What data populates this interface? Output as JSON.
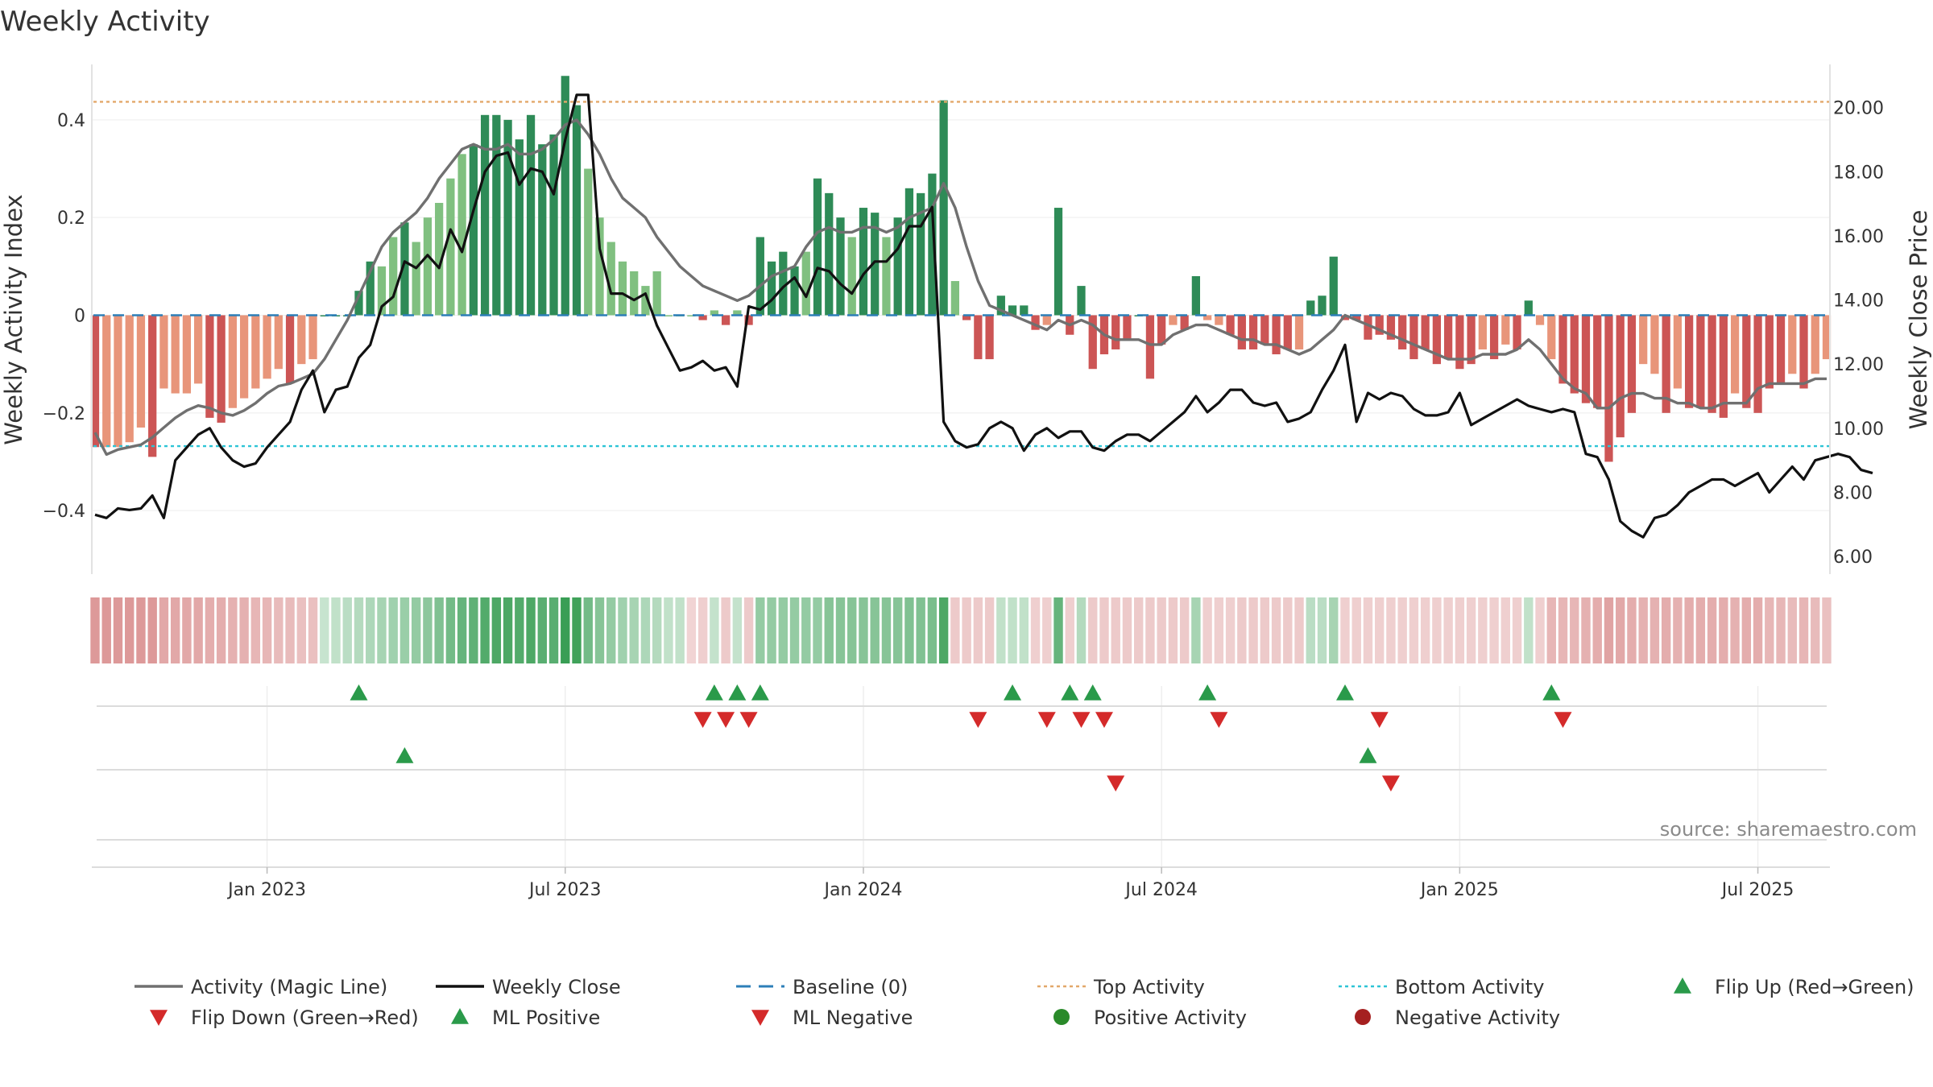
{
  "chart_data": {
    "type": "bar",
    "title": "Weekly Activity",
    "ylabel_left": "Weekly Activity Index",
    "ylabel_right": "Weekly Close Price",
    "ylim_left": [
      -0.53,
      0.53
    ],
    "ylim_right": [
      5.45,
      21.6
    ],
    "yticks_left": [
      {
        "value": 0.4,
        "label": "0.4"
      },
      {
        "value": 0.2,
        "label": "0.2"
      },
      {
        "value": 0,
        "label": "0"
      },
      {
        "value": -0.2,
        "label": "−0.2"
      },
      {
        "value": -0.4,
        "label": "−0.4"
      }
    ],
    "yticks_right": [
      {
        "value": 20,
        "label": "20.00"
      },
      {
        "value": 18,
        "label": "18.00"
      },
      {
        "value": 16,
        "label": "16.00"
      },
      {
        "value": 14,
        "label": "14.00"
      },
      {
        "value": 12,
        "label": "12.00"
      },
      {
        "value": 10,
        "label": "10.00"
      },
      {
        "value": 8,
        "label": "8.00"
      },
      {
        "value": 6,
        "label": "6.00"
      }
    ],
    "x_ticks": [
      {
        "label": "Jan 2023",
        "week": 15
      },
      {
        "label": "Jul 2023",
        "week": 41
      },
      {
        "label": "Jan 2024",
        "week": 67
      },
      {
        "label": "Jul 2024",
        "week": 93
      },
      {
        "label": "Jan 2025",
        "week": 119
      },
      {
        "label": "Jul 2025",
        "week": 145
      }
    ],
    "top_activity": 0.437,
    "bottom_activity": -0.268,
    "activity": [
      -0.27,
      -0.27,
      -0.27,
      -0.26,
      -0.23,
      -0.29,
      -0.15,
      -0.16,
      -0.16,
      -0.14,
      -0.21,
      -0.22,
      -0.19,
      -0.17,
      -0.15,
      -0.13,
      -0.11,
      -0.14,
      -0.1,
      -0.09,
      0,
      0,
      0,
      0.05,
      0.11,
      0.1,
      0.16,
      0.19,
      0.15,
      0.2,
      0.23,
      0.28,
      0.33,
      0.35,
      0.41,
      0.41,
      0.4,
      0.36,
      0.41,
      0.35,
      0.37,
      0.49,
      0.43,
      0.3,
      0.2,
      0.15,
      0.11,
      0.09,
      0.06,
      0.09,
      0,
      0,
      0,
      -0.01,
      0.01,
      -0.02,
      0.01,
      -0.02,
      0.16,
      0.11,
      0.13,
      0.1,
      0.13,
      0.28,
      0.25,
      0.2,
      0.16,
      0.22,
      0.21,
      0.16,
      0.2,
      0.26,
      0.25,
      0.29,
      0.44,
      0.07,
      -0.01,
      -0.09,
      -0.09,
      0.04,
      0.02,
      0.02,
      -0.03,
      -0.02,
      0.22,
      -0.04,
      0.06,
      -0.11,
      -0.08,
      -0.07,
      -0.05,
      0,
      -0.13,
      -0.06,
      -0.02,
      -0.03,
      0.08,
      -0.01,
      -0.02,
      -0.04,
      -0.07,
      -0.07,
      -0.06,
      -0.08,
      -0.07,
      -0.07,
      0.03,
      0.04,
      0.12,
      -0.01,
      -0.01,
      -0.05,
      -0.04,
      -0.05,
      -0.07,
      -0.09,
      -0.07,
      -0.1,
      -0.09,
      -0.11,
      -0.1,
      -0.07,
      -0.09,
      -0.06,
      -0.07,
      0.03,
      -0.02,
      -0.09,
      -0.14,
      -0.16,
      -0.18,
      -0.19,
      -0.3,
      -0.25,
      -0.2,
      -0.1,
      -0.12,
      -0.2,
      -0.15,
      -0.19,
      -0.19,
      -0.2,
      -0.21,
      -0.16,
      -0.19,
      -0.2,
      -0.15,
      -0.14,
      -0.12,
      -0.15,
      -0.12,
      -0.09
    ],
    "magic_line": [
      -0.24,
      -0.285,
      -0.275,
      -0.27,
      -0.265,
      -0.25,
      -0.23,
      -0.21,
      -0.195,
      -0.185,
      -0.19,
      -0.2,
      -0.205,
      -0.195,
      -0.18,
      -0.16,
      -0.145,
      -0.14,
      -0.13,
      -0.12,
      -0.09,
      -0.05,
      -0.01,
      0.04,
      0.09,
      0.14,
      0.17,
      0.19,
      0.21,
      0.24,
      0.28,
      0.31,
      0.34,
      0.35,
      0.34,
      0.34,
      0.35,
      0.33,
      0.33,
      0.34,
      0.36,
      0.39,
      0.4,
      0.37,
      0.33,
      0.28,
      0.24,
      0.22,
      0.2,
      0.16,
      0.13,
      0.1,
      0.08,
      0.06,
      0.05,
      0.04,
      0.03,
      0.04,
      0.06,
      0.08,
      0.09,
      0.1,
      0.14,
      0.17,
      0.18,
      0.17,
      0.17,
      0.18,
      0.18,
      0.17,
      0.18,
      0.2,
      0.21,
      0.22,
      0.27,
      0.22,
      0.14,
      0.07,
      0.02,
      0.01,
      0,
      -0.01,
      -0.02,
      -0.03,
      -0.01,
      -0.02,
      -0.01,
      -0.02,
      -0.04,
      -0.05,
      -0.05,
      -0.05,
      -0.06,
      -0.06,
      -0.04,
      -0.03,
      -0.02,
      -0.02,
      -0.03,
      -0.04,
      -0.05,
      -0.05,
      -0.06,
      -0.06,
      -0.07,
      -0.08,
      -0.07,
      -0.05,
      -0.03,
      0,
      -0.01,
      -0.02,
      -0.03,
      -0.04,
      -0.05,
      -0.06,
      -0.07,
      -0.08,
      -0.09,
      -0.09,
      -0.09,
      -0.08,
      -0.08,
      -0.08,
      -0.07,
      -0.05,
      -0.07,
      -0.1,
      -0.13,
      -0.15,
      -0.16,
      -0.19,
      -0.19,
      -0.17,
      -0.16,
      -0.16,
      -0.17,
      -0.17,
      -0.18,
      -0.18,
      -0.19,
      -0.19,
      -0.18,
      -0.18,
      -0.18,
      -0.15,
      -0.14,
      -0.14,
      -0.14,
      -0.14,
      -0.13,
      -0.13
    ],
    "weekly_close": [
      7.3,
      7.2,
      7.5,
      7.45,
      7.5,
      7.9,
      7.2,
      9,
      9.4,
      9.8,
      10,
      9.4,
      9,
      8.8,
      8.9,
      9.4,
      9.8,
      10.2,
      11.2,
      11.8,
      10.5,
      11.2,
      11.3,
      12.2,
      12.6,
      13.8,
      14.1,
      15.2,
      15,
      15.4,
      15,
      16.2,
      15.5,
      16.8,
      18,
      18.5,
      18.6,
      17.6,
      18.1,
      18,
      17.3,
      19,
      20.4,
      20.4,
      15.6,
      14.2,
      14.2,
      14,
      14.2,
      13.2,
      12.5,
      11.8,
      11.9,
      12.1,
      11.8,
      11.9,
      11.3,
      13.8,
      13.7,
      14,
      14.4,
      14.7,
      14.1,
      15,
      14.9,
      14.5,
      14.2,
      14.8,
      15.2,
      15.2,
      15.6,
      16.3,
      16.3,
      16.9,
      10.2,
      9.6,
      9.4,
      9.5,
      10,
      10.2,
      10,
      9.3,
      9.8,
      10,
      9.7,
      9.9,
      9.9,
      9.4,
      9.3,
      9.6,
      9.8,
      9.8,
      9.6,
      9.9,
      10.2,
      10.5,
      11,
      10.5,
      10.8,
      11.2,
      11.2,
      10.8,
      10.7,
      10.8,
      10.2,
      10.3,
      10.5,
      11.2,
      11.8,
      12.6,
      10.2,
      11.1,
      10.9,
      11.1,
      11,
      10.6,
      10.4,
      10.4,
      10.5,
      11.1,
      10.1,
      10.3,
      10.5,
      10.7,
      10.9,
      10.7,
      10.6,
      10.5,
      10.6,
      10.5,
      9.2,
      9.1,
      8.4,
      7.1,
      6.8,
      6.6,
      7.2,
      7.3,
      7.6,
      8,
      8.2,
      8.4,
      8.4,
      8.2,
      8.4,
      8.6,
      8,
      8.4,
      8.8,
      8.4,
      9,
      9.1,
      9.2,
      9.1,
      8.7,
      8.6
    ],
    "heat_band": [
      -0.28,
      -0.28,
      -0.28,
      -0.28,
      -0.28,
      -0.28,
      -0.22,
      -0.22,
      -0.22,
      -0.22,
      -0.2,
      -0.2,
      -0.18,
      -0.18,
      -0.16,
      -0.16,
      -0.14,
      -0.14,
      -0.12,
      -0.12,
      0.04,
      0.06,
      0.08,
      0.1,
      0.12,
      0.14,
      0.16,
      0.18,
      0.2,
      0.22,
      0.26,
      0.3,
      0.34,
      0.36,
      0.4,
      0.42,
      0.42,
      0.4,
      0.42,
      0.38,
      0.38,
      0.48,
      0.46,
      0.3,
      0.24,
      0.2,
      0.16,
      0.14,
      0.12,
      0.1,
      0.06,
      0.06,
      -0.04,
      -0.06,
      0.05,
      -0.08,
      0.05,
      -0.08,
      0.2,
      0.2,
      0.2,
      0.2,
      0.2,
      0.2,
      0.24,
      0.24,
      0.24,
      0.24,
      0.24,
      0.24,
      0.24,
      0.26,
      0.26,
      0.28,
      0.42,
      -0.08,
      -0.08,
      -0.08,
      -0.08,
      0.06,
      0.06,
      0.06,
      -0.06,
      -0.06,
      0.34,
      -0.06,
      0.1,
      -0.08,
      -0.08,
      -0.08,
      -0.08,
      -0.08,
      -0.08,
      -0.08,
      -0.08,
      -0.08,
      0.14,
      -0.06,
      -0.06,
      -0.06,
      -0.08,
      -0.08,
      -0.08,
      -0.08,
      -0.08,
      -0.08,
      0.08,
      0.08,
      0.14,
      -0.06,
      -0.06,
      -0.06,
      -0.06,
      -0.06,
      -0.06,
      -0.06,
      -0.06,
      -0.06,
      -0.06,
      -0.06,
      -0.06,
      -0.06,
      -0.06,
      -0.06,
      -0.06,
      0.06,
      -0.06,
      -0.16,
      -0.16,
      -0.16,
      -0.18,
      -0.2,
      -0.24,
      -0.22,
      -0.2,
      -0.18,
      -0.18,
      -0.2,
      -0.18,
      -0.2,
      -0.2,
      -0.2,
      -0.2,
      -0.18,
      -0.2,
      -0.2,
      -0.16,
      -0.16,
      -0.14,
      -0.16,
      -0.14,
      -0.12
    ],
    "flip_up": [
      23,
      54,
      56,
      58,
      80,
      85,
      87,
      97,
      109,
      127
    ],
    "flip_down": [
      53,
      55,
      57,
      77,
      83,
      86,
      88,
      98,
      112,
      128
    ],
    "ml_positive": [
      27,
      111
    ],
    "ml_negative": [
      89,
      113
    ],
    "legend": [
      {
        "label": "Activity (Magic Line)",
        "symbol": "line",
        "color": "#707070"
      },
      {
        "label": "Weekly Close",
        "symbol": "line",
        "color": "#111111"
      },
      {
        "label": "Baseline (0)",
        "symbol": "dash",
        "color": "#2d7fb8"
      },
      {
        "label": "Top Activity",
        "symbol": "dot",
        "color": "#e3a86a"
      },
      {
        "label": "Bottom Activity",
        "symbol": "dot",
        "color": "#2ec4d6"
      },
      {
        "label": "Flip Up (Red→Green)",
        "symbol": "tri-up",
        "color": "#2a9a4a"
      },
      {
        "label": "Flip Down (Green→Red)",
        "symbol": "tri-down",
        "color": "#d42a2a"
      },
      {
        "label": "ML Positive",
        "symbol": "tri-up",
        "color": "#2a9a4a"
      },
      {
        "label": "ML Negative",
        "symbol": "tri-down",
        "color": "#d42a2a"
      },
      {
        "label": "Positive Activity",
        "symbol": "circle",
        "color": "#2a8a2a"
      },
      {
        "label": "Negative Activity",
        "symbol": "circle",
        "color": "#a52020"
      }
    ],
    "source": "source: sharemaestro.com"
  }
}
